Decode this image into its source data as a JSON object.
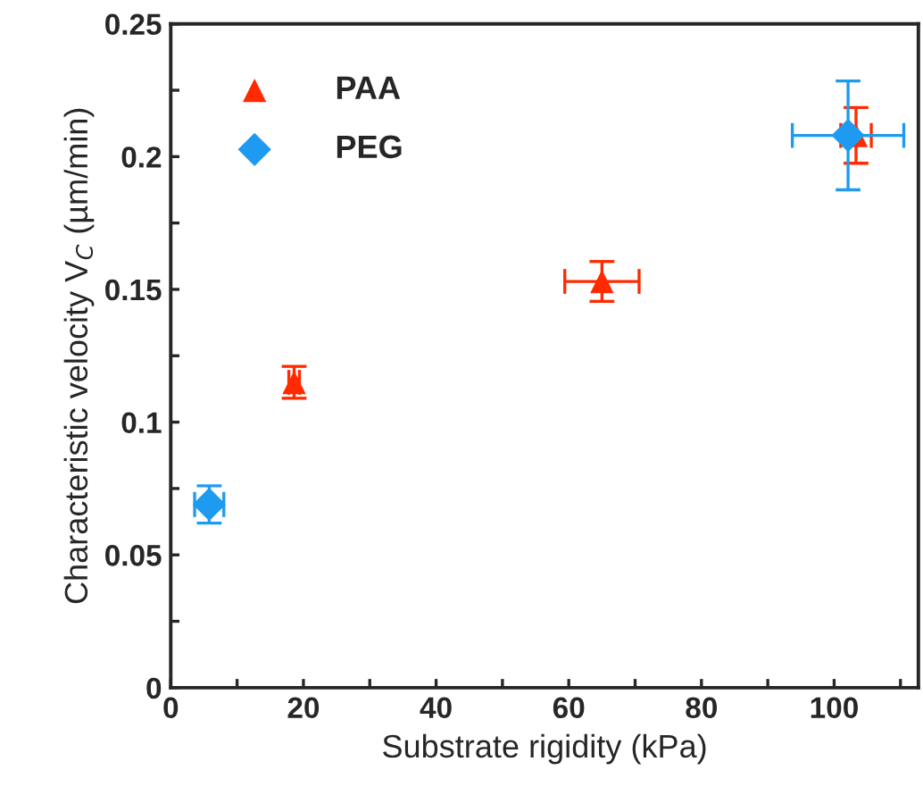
{
  "chart_data": {
    "type": "scatter",
    "xlabel": "Substrate rigidity (kPa)",
    "ylabel": "Characteristic velocity V$_{C}$ (µm/min)",
    "xlim": [
      0,
      112.7
    ],
    "ylim": [
      0,
      0.25
    ],
    "xticks": [
      0,
      {
        "value": 10,
        "label": null
      },
      20,
      {
        "value": 30,
        "label": null
      },
      40,
      {
        "value": 50,
        "label": null
      },
      60,
      {
        "value": 70,
        "label": null
      },
      80,
      {
        "value": 90,
        "label": null
      },
      100,
      {
        "value": 110,
        "label": null
      }
    ],
    "yticks": [
      0,
      {
        "value": 0.025,
        "label": null
      },
      0.05,
      {
        "value": 0.075,
        "label": null
      },
      0.1,
      {
        "value": 0.125,
        "label": null
      },
      0.15,
      {
        "value": 0.175,
        "label": null
      },
      0.2,
      {
        "value": 0.225,
        "label": null
      },
      0.25
    ],
    "grid": false,
    "legend": "top left",
    "series": [
      {
        "name": "PAA",
        "color": "#ff2a00",
        "marker": "triangle",
        "x": [
          18.6,
          65.0,
          103.3
        ],
        "values": [
          0.115,
          0.153,
          0.208
        ],
        "errors": [
          0.006,
          0.0075,
          0.0105
        ],
        "xerrors": [
          0.8,
          5.6,
          2.3
        ]
      },
      {
        "name": "PEG",
        "color": "#1e9bf0",
        "marker": "diamond",
        "x": [
          5.8,
          102.1
        ],
        "values": [
          0.069,
          0.208
        ],
        "errors": [
          0.007,
          0.0205
        ],
        "xerrors": [
          2.2,
          8.4
        ]
      }
    ]
  }
}
